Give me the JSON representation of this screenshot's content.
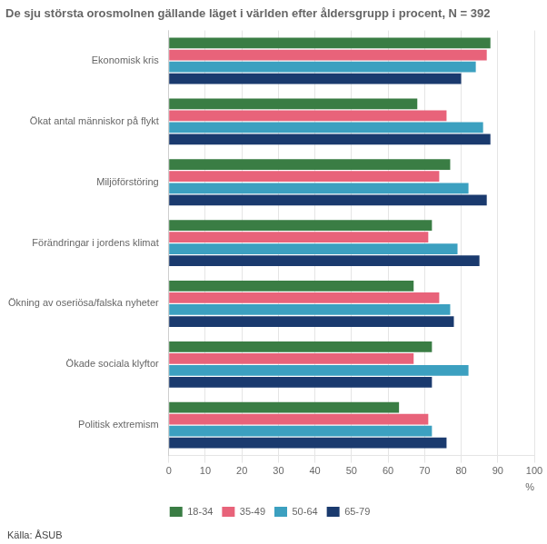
{
  "chart_data": {
    "type": "bar",
    "orientation": "horizontal",
    "title": "De sju största orosmolnen gällande läget i världen efter åldersgrupp i procent, N = 392",
    "xlabel": "%",
    "annotations": [
      "Källa: ÅSUB"
    ],
    "categories": [
      "Ekonomisk kris",
      "Ökat antal människor på flykt",
      "Miljöförstöring",
      "Förändringar i jordens klimat",
      "Ökning av oseriösa/falska nyheter",
      "Ökade sociala klyftor",
      "Politisk extremism"
    ],
    "series": [
      {
        "name": "18-34",
        "color": "#3a7d44",
        "values": [
          88,
          68,
          77,
          72,
          67,
          72,
          63
        ]
      },
      {
        "name": "35-49",
        "color": "#e8637a",
        "values": [
          87,
          76,
          74,
          71,
          74,
          67,
          71
        ]
      },
      {
        "name": "50-64",
        "color": "#3ca0c0",
        "values": [
          84,
          86,
          82,
          79,
          77,
          82,
          72
        ]
      },
      {
        "name": "65-79",
        "color": "#1a3a6e",
        "values": [
          80,
          88,
          87,
          85,
          78,
          72,
          76
        ]
      }
    ],
    "xlim": [
      0,
      100
    ],
    "xticks": [
      0,
      10,
      20,
      30,
      40,
      50,
      60,
      70,
      80,
      90,
      100
    ],
    "grid": true,
    "legend": "bottom"
  }
}
